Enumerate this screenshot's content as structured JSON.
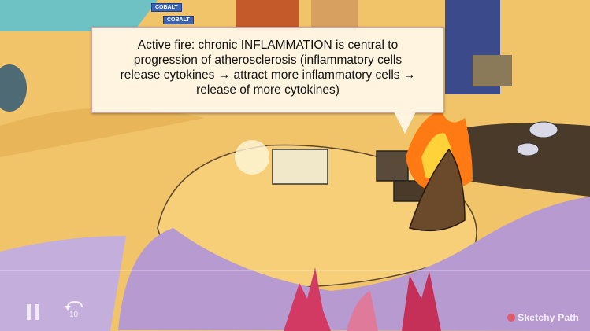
{
  "caption": {
    "line1": "Active fire: chronic INFLAMMATION is central to",
    "line2": "progression of atherosclerosis (inflammatory cells",
    "line3": "release cytokines → attract more inflammatory cells →",
    "line4": "release of more cytokines)"
  },
  "scene": {
    "tags": [
      "COBALT",
      "COBALT"
    ],
    "colors": {
      "sand": "#f2c46a",
      "sea": "#7cc6c9",
      "water_dark": "#3b7c86",
      "fire": "#ff7a12",
      "flower": "#b79ad0",
      "coral": "#d23a64"
    }
  },
  "player": {
    "rewind_label": "10",
    "logo": "Sketchy Path"
  }
}
